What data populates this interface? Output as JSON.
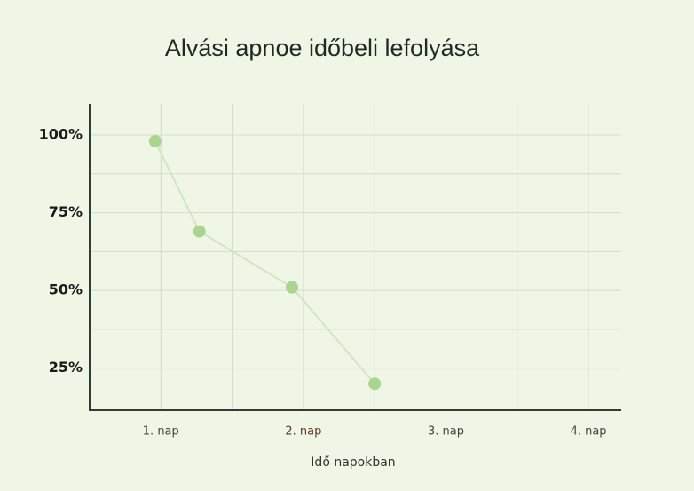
{
  "chart_data": {
    "type": "line",
    "title": "Alvási apnoe időbeli lefolyása",
    "x_label": "Idő napokban",
    "x": [
      0.96,
      1.27,
      1.92,
      2.5
    ],
    "series": [
      {
        "name": "Alvási apnoe",
        "color": "#a9d58f",
        "values": [
          98,
          69,
          51,
          20
        ]
      }
    ],
    "xlim": [
      0.5,
      4.23
    ],
    "ylim": [
      11.5,
      110
    ],
    "xticks": [
      {
        "value": 1,
        "label": "1. nap"
      },
      {
        "value": 2,
        "label": "2. nap"
      },
      {
        "value": 3,
        "label": "3. nap"
      },
      {
        "value": 4,
        "label": "4. nap"
      }
    ],
    "x_minor_ticks": [
      1.5,
      2.5,
      3.5
    ],
    "yticks": [
      {
        "value": 25,
        "label": "25%"
      },
      {
        "value": 50,
        "label": "50%"
      },
      {
        "value": 75,
        "label": "75%"
      },
      {
        "value": 100,
        "label": "100%"
      }
    ],
    "y_minor_ticks": [
      37.5,
      62.5,
      87.5
    ],
    "grid": true
  }
}
